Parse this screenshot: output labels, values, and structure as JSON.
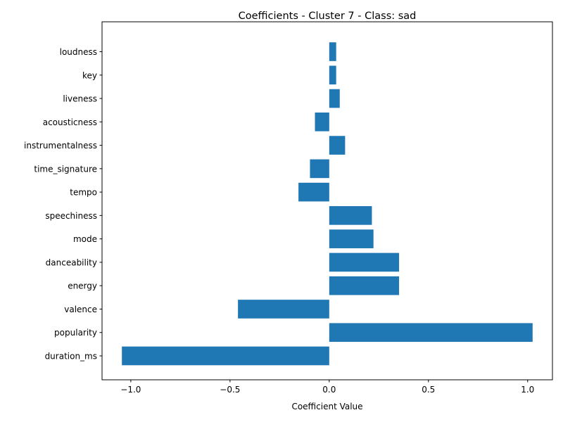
{
  "chart_data": {
    "type": "bar",
    "orientation": "horizontal",
    "title": "Coefficients - Cluster 7 - Class: sad",
    "xlabel": "Coefficient Value",
    "ylabel": "",
    "categories": [
      "duration_ms",
      "popularity",
      "valence",
      "energy",
      "danceability",
      "mode",
      "speechiness",
      "tempo",
      "time_signature",
      "instrumentalness",
      "acousticness",
      "liveness",
      "key",
      "loudness"
    ],
    "values": [
      -1.045,
      1.025,
      -0.46,
      0.352,
      0.352,
      0.223,
      0.215,
      -0.155,
      -0.097,
      0.08,
      -0.072,
      0.053,
      0.035,
      0.035
    ],
    "xlim": [
      -1.145,
      1.125
    ],
    "xticks": [
      -1.0,
      -0.5,
      0.0,
      0.5,
      1.0
    ],
    "xtick_labels": [
      "−1.0",
      "−0.5",
      "0.0",
      "0.5",
      "1.0"
    ],
    "bar_color": "#1f77b4",
    "grid": false
  }
}
